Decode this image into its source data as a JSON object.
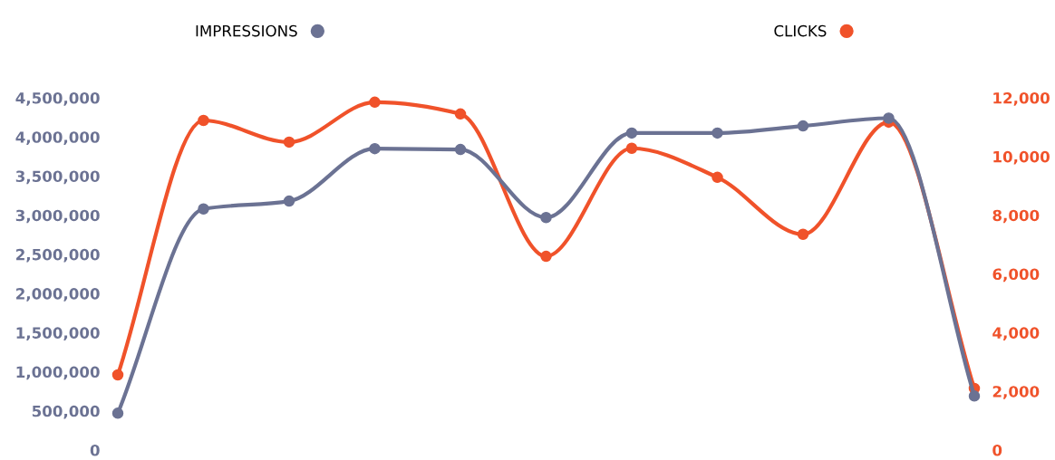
{
  "chart_data": {
    "type": "line",
    "categories": [
      null,
      null,
      null,
      null,
      null,
      null,
      null,
      null,
      null,
      null,
      null
    ],
    "series": [
      {
        "name": "IMPRESSIONS",
        "color": "#6b7293",
        "values": [
          470000,
          3080000,
          3180000,
          3850000,
          3840000,
          2970000,
          4050000,
          4050000,
          4140000,
          4240000,
          690000
        ]
      },
      {
        "name": "CLICKS",
        "color": "#f0522a",
        "axis": "y2",
        "values": [
          2560,
          11230,
          10490,
          11850,
          11450,
          6600,
          10280,
          9290,
          7350,
          11170,
          2100
        ]
      }
    ],
    "ylim": [
      0,
      4500000
    ],
    "yticks": [
      {
        "value": 0,
        "label": "0"
      },
      {
        "value": 500000,
        "label": "500,000"
      },
      {
        "value": 1000000,
        "label": "1,000,000"
      },
      {
        "value": 1500000,
        "label": "1,500,000"
      },
      {
        "value": 2000000,
        "label": "2,000,000"
      },
      {
        "value": 2500000,
        "label": "2,500,000"
      },
      {
        "value": 3000000,
        "label": "3,000,000"
      },
      {
        "value": 3500000,
        "label": "3,500,000"
      },
      {
        "value": 4000000,
        "label": "4,000,000"
      },
      {
        "value": 4500000,
        "label": "4,500,000"
      }
    ],
    "y2lim": [
      0,
      12000
    ],
    "y2ticks": [
      {
        "value": 0,
        "label": "0"
      },
      {
        "value": 2000,
        "label": "2,000"
      },
      {
        "value": 4000,
        "label": "4,000"
      },
      {
        "value": 6000,
        "label": "6,000"
      },
      {
        "value": 8000,
        "label": "8,000"
      },
      {
        "value": 10000,
        "label": "10,000"
      },
      {
        "value": 12000,
        "label": "12,000"
      }
    ],
    "marker": "circle",
    "line_style": "solid",
    "grid": false,
    "legend": "top",
    "tick_labels": "y"
  }
}
